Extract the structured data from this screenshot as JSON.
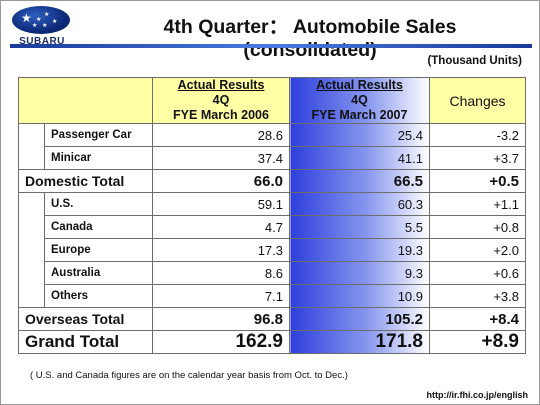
{
  "logo": {
    "brand": "SUBARU"
  },
  "title": "4th Quarter： Automobile Sales (consolidated)",
  "units": "(Thousand Units)",
  "columns": {
    "c2006": {
      "line1": "Actual Results",
      "line2": "4Q",
      "line3": "FYE March 2006"
    },
    "c2007": {
      "line1": "Actual Results",
      "line2": "4Q",
      "line3": "FYE March 2007"
    },
    "changes": "Changes"
  },
  "rows": {
    "passenger": {
      "label": "Passenger Car",
      "v2006": "28.6",
      "v2007": "25.4",
      "change": "-3.2"
    },
    "minicar": {
      "label": "Minicar",
      "v2006": "37.4",
      "v2007": "41.1",
      "change": "+3.7"
    },
    "domestic_total": {
      "label": "Domestic Total",
      "v2006": "66.0",
      "v2007": "66.5",
      "change": "+0.5"
    },
    "us": {
      "label": "U.S.",
      "v2006": "59.1",
      "v2007": "60.3",
      "change": "+1.1"
    },
    "canada": {
      "label": "Canada",
      "v2006": "4.7",
      "v2007": "5.5",
      "change": "+0.8"
    },
    "europe": {
      "label": "Europe",
      "v2006": "17.3",
      "v2007": "19.3",
      "change": "+2.0"
    },
    "australia": {
      "label": "Australia",
      "v2006": "8.6",
      "v2007": "9.3",
      "change": "+0.6"
    },
    "others": {
      "label": "Others",
      "v2006": "7.1",
      "v2007": "10.9",
      "change": "+3.8"
    },
    "overseas_total": {
      "label": "Overseas Total",
      "v2006": "96.8",
      "v2007": "105.2",
      "change": "+8.4"
    },
    "grand_total": {
      "label": "Grand Total",
      "v2006": "162.9",
      "v2007": "171.8",
      "change": "+8.9"
    }
  },
  "footnote": "( U.S. and Canada figures are on the calendar year basis from Oct. to Dec.)",
  "url": "http://ir.fhi.co.jp/english",
  "colors": {
    "header_yellow": "#ffffa6",
    "accent_blue": "#2d3fdc",
    "negative": "#e00000"
  }
}
